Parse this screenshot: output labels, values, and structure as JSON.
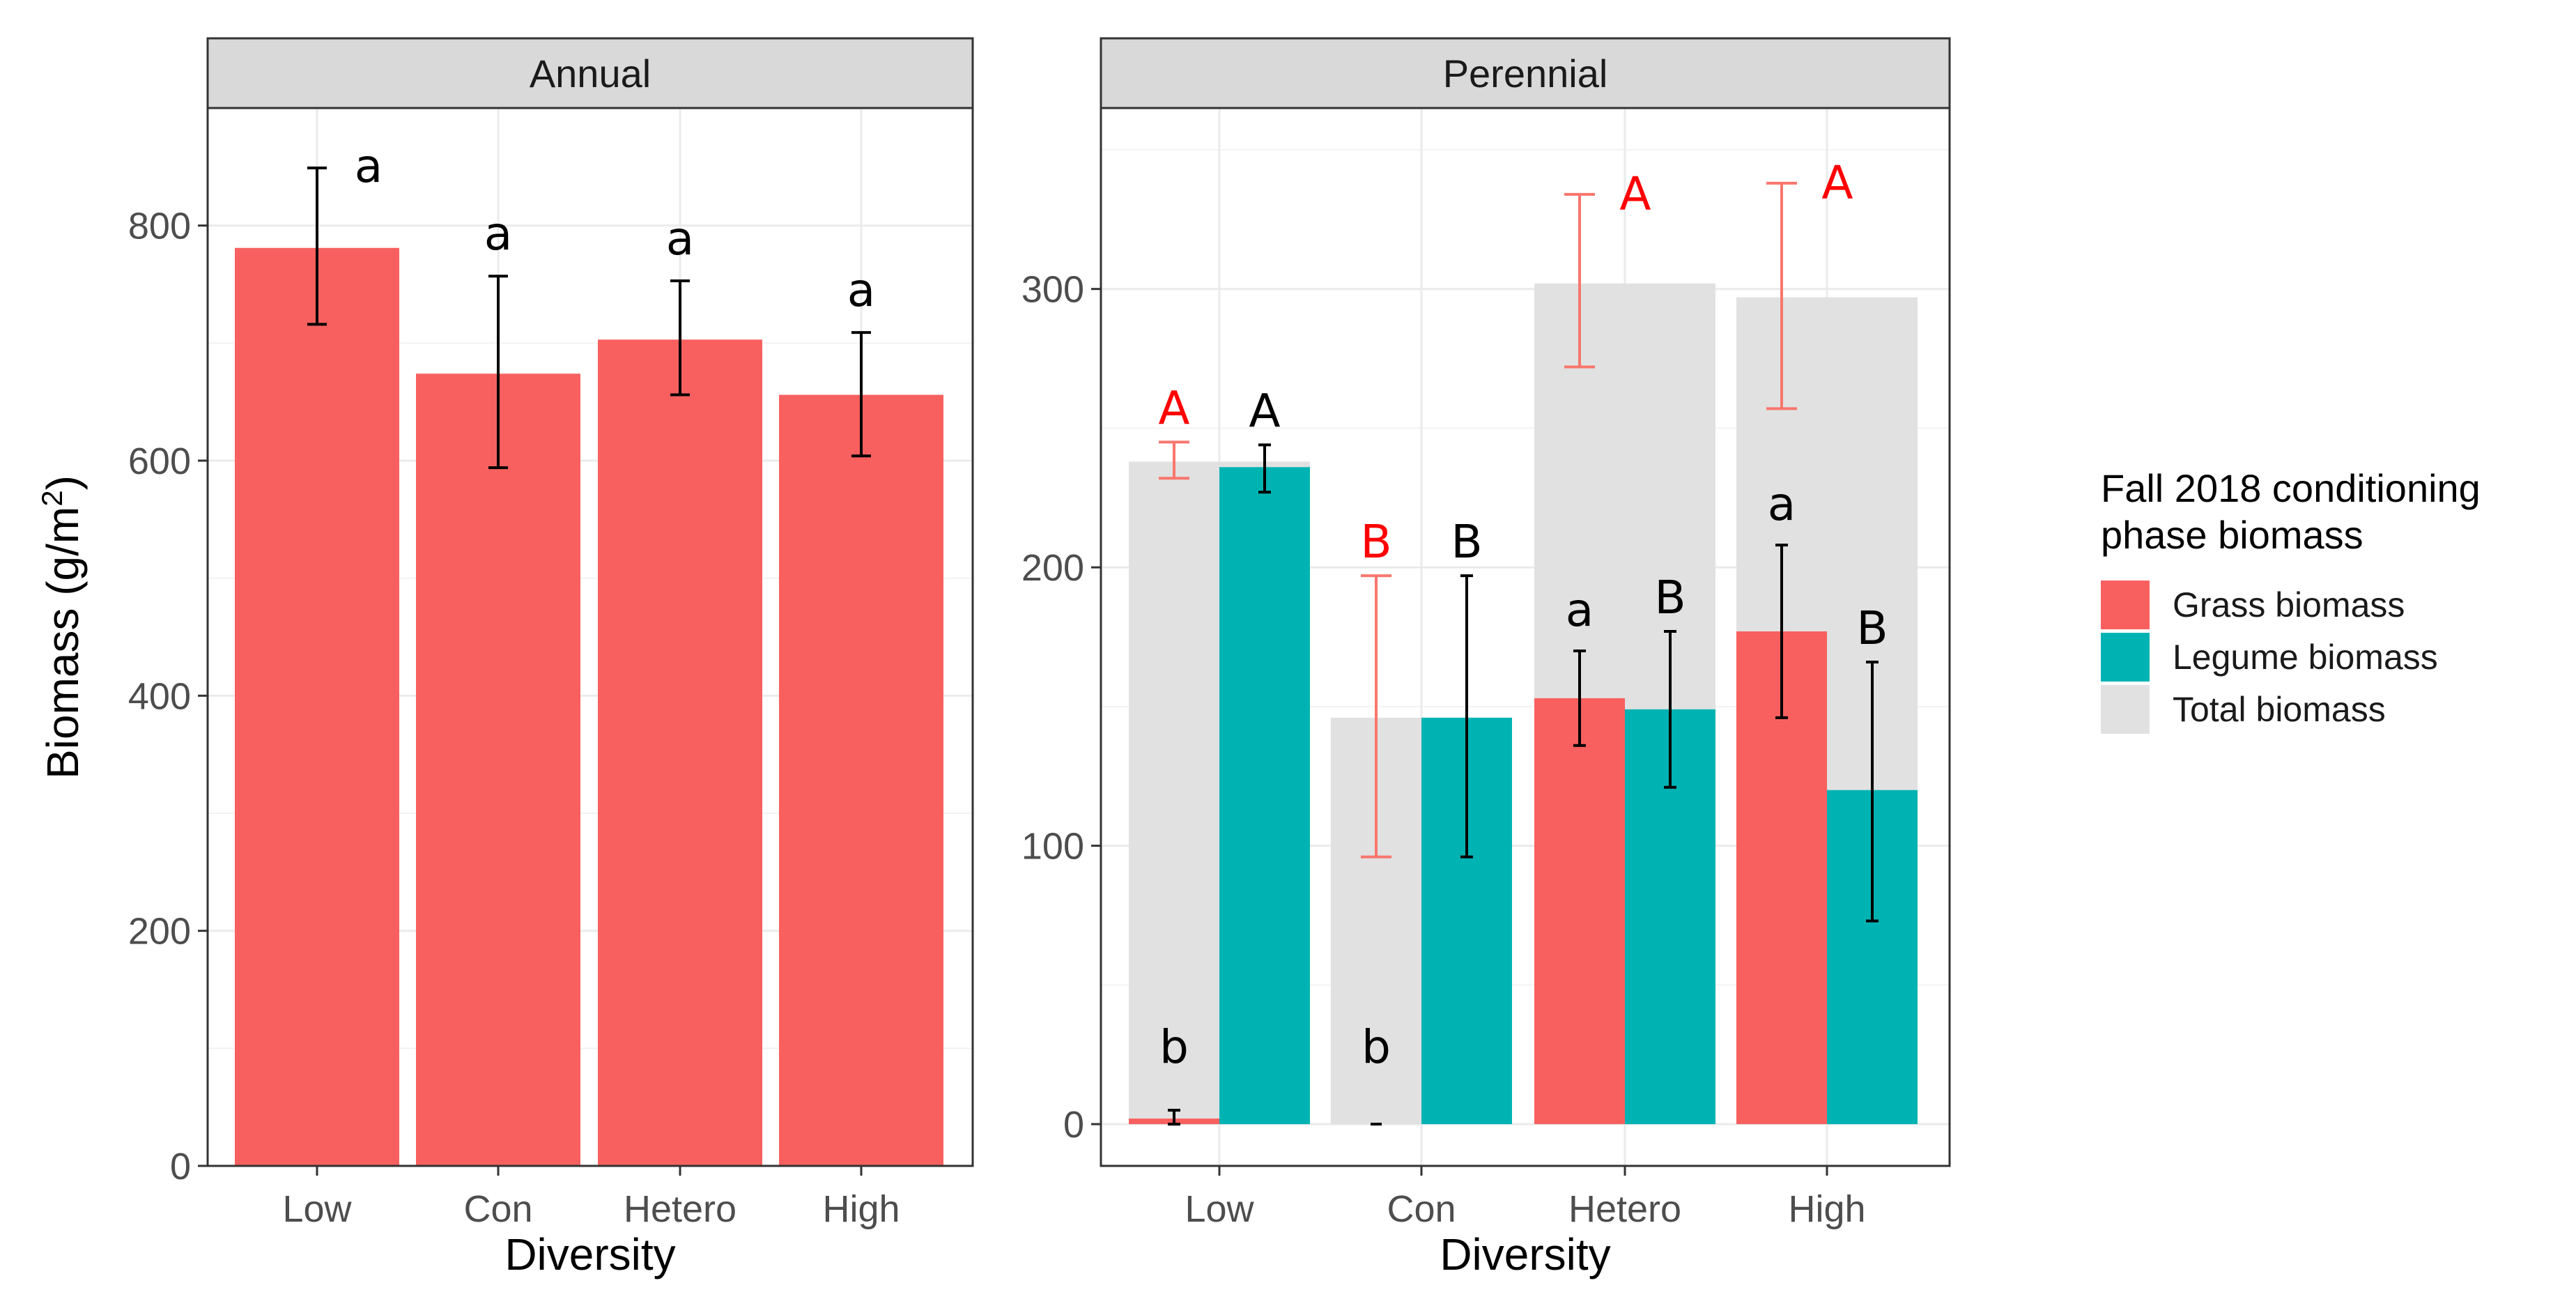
{
  "chart_data": [
    {
      "type": "bar",
      "panel": "Annual",
      "xlabel": "Diversity",
      "ylabel": "Biomass",
      "ylabel_unit": "(g/m",
      "ylabel_sup": "2",
      "ylabel_close": ")",
      "ylim": [
        0,
        900
      ],
      "yticks": [
        0,
        200,
        400,
        600,
        800
      ],
      "ytick_labels": [
        "0",
        "200",
        "400",
        "600",
        "800"
      ],
      "categories": [
        "Low",
        "Con",
        "Hetero",
        "High"
      ],
      "series": [
        {
          "name": "Grass biomass",
          "color": "#F8605F",
          "values": [
            781,
            674,
            703,
            656
          ],
          "error_low": [
            716,
            594,
            656,
            604
          ],
          "error_high": [
            849,
            757,
            753,
            709
          ],
          "letters": [
            "a",
            "a",
            "a",
            "a"
          ],
          "letter_color": "#000000"
        }
      ]
    },
    {
      "type": "bar",
      "panel": "Perennial",
      "xlabel": "Diversity",
      "ylim": [
        -15,
        365
      ],
      "yticks": [
        0,
        100,
        200,
        300
      ],
      "ytick_labels": [
        "0",
        "100",
        "200",
        "300"
      ],
      "categories": [
        "Low",
        "Con",
        "Hetero",
        "High"
      ],
      "series": [
        {
          "name": "Total biomass",
          "color": "#E1E1E1",
          "values": [
            238,
            146,
            302,
            297
          ],
          "error_low": [
            232,
            96,
            272,
            257
          ],
          "error_high": [
            245,
            197,
            334,
            338
          ],
          "error_color": "#F8766D",
          "letters": [
            "A",
            "B",
            "A",
            "A"
          ],
          "letter_color": "#FF0000"
        },
        {
          "name": "Grass biomass",
          "color": "#F8605F",
          "values": [
            2,
            0,
            153,
            177
          ],
          "error_low": [
            0,
            0,
            136,
            146
          ],
          "error_high": [
            5,
            0,
            170,
            208
          ],
          "letters": [
            "b",
            "b",
            "a",
            "a"
          ],
          "letter_color": "#000000"
        },
        {
          "name": "Legume biomass",
          "color": "#00B3B3",
          "values": [
            236,
            146,
            149,
            120
          ],
          "error_low": [
            227,
            96,
            121,
            73
          ],
          "error_high": [
            244,
            197,
            177,
            166
          ],
          "letters": [
            "A",
            "B",
            "B",
            "B"
          ],
          "letter_color": "#000000"
        }
      ]
    }
  ],
  "legend": {
    "title_line1": "Fall 2018 conditioning",
    "title_line2": "phase biomass",
    "items": [
      {
        "label": "Grass biomass",
        "color": "#F8605F"
      },
      {
        "label": "Legume biomass",
        "color": "#00B3B3"
      },
      {
        "label": "Total biomass",
        "color": "#E1E1E1"
      }
    ]
  }
}
